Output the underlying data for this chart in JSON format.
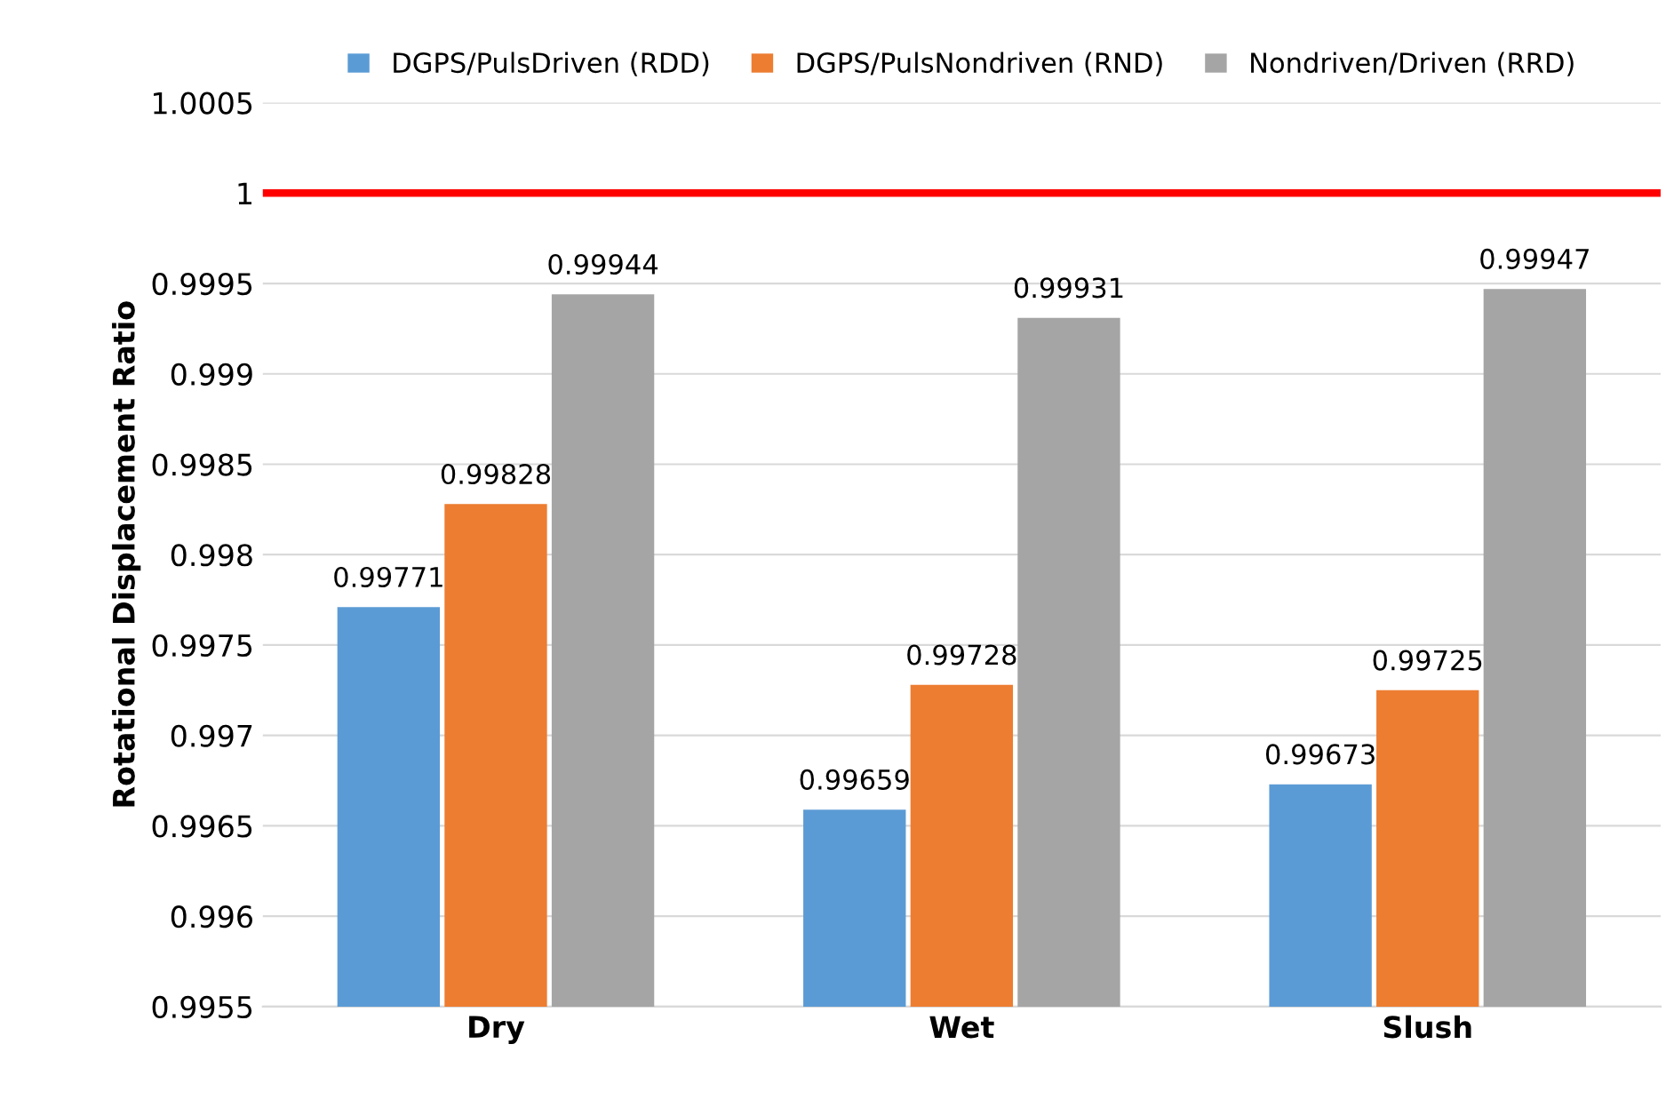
{
  "chart_data": {
    "type": "bar",
    "ylabel": "Rotational Displacement Ratio",
    "categories": [
      "Dry",
      "Wet",
      "Slush"
    ],
    "series": [
      {
        "name": "DGPS/PulsDriven (RDD)",
        "color": "#5b9bd5",
        "values": [
          0.99771,
          0.99659,
          0.99673
        ]
      },
      {
        "name": "DGPS/PulsNondriven (RND)",
        "color": "#ed7d31",
        "values": [
          0.99828,
          0.99728,
          0.99725
        ]
      },
      {
        "name": "Nondriven/Driven (RRD)",
        "color": "#a5a5a5",
        "values": [
          0.99944,
          0.99931,
          0.99947
        ]
      }
    ],
    "ylim": [
      0.9955,
      1.0005
    ],
    "yticks": [
      0.9955,
      0.996,
      0.9965,
      0.997,
      0.9975,
      0.998,
      0.9985,
      0.999,
      0.9995,
      1,
      1.0005
    ],
    "ref_lines": [
      {
        "axis": "y",
        "value": 1,
        "color": "#ff0000"
      }
    ],
    "grid": "y",
    "legend": "top",
    "data_labels": true
  }
}
